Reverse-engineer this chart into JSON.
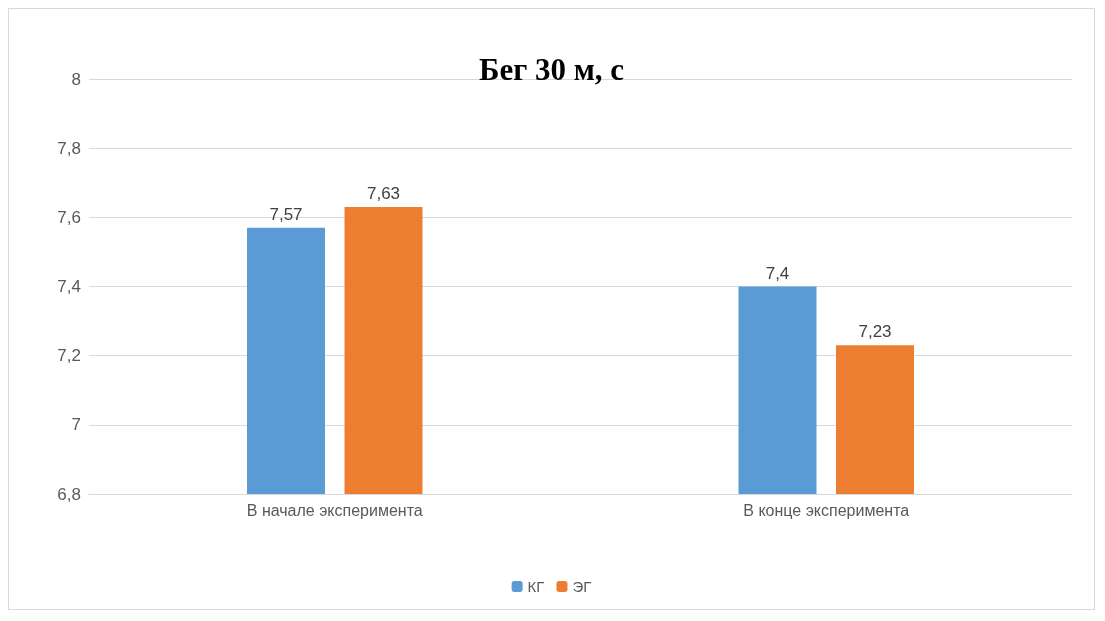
{
  "chart_data": {
    "type": "bar",
    "title": "Бег 30 м, с",
    "categories": [
      "В начале эксперимента",
      "В конце эксперимента"
    ],
    "series": [
      {
        "name": "КГ",
        "color": "#5b9bd5",
        "values": [
          7.57,
          7.4
        ],
        "value_labels": [
          "7,57",
          "7,4"
        ]
      },
      {
        "name": "ЭГ",
        "color": "#ed7d31",
        "values": [
          7.63,
          7.23
        ],
        "value_labels": [
          "7,63",
          "7,23"
        ]
      }
    ],
    "ylim": [
      6.8,
      8
    ],
    "yticks": [
      {
        "value": 6.8,
        "label": "6,8"
      },
      7,
      {
        "value": 7.2,
        "label": "7,2"
      },
      {
        "value": 7.4,
        "label": "7,4"
      },
      {
        "value": 7.6,
        "label": "7,6"
      },
      {
        "value": 7.8,
        "label": "7,8"
      },
      8
    ],
    "grid": "y",
    "legend": "bottom"
  }
}
